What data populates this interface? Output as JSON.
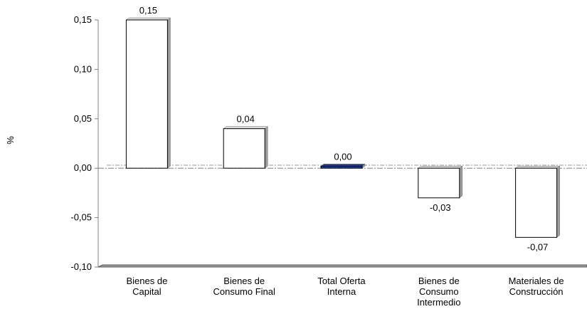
{
  "chart_data": {
    "type": "bar",
    "title": "",
    "xlabel": "",
    "ylabel": "%",
    "categories": [
      [
        "Bienes de",
        "Capital"
      ],
      [
        "Bienes de",
        "Consumo Final"
      ],
      [
        "Total Oferta",
        "Interna"
      ],
      [
        "Bienes de",
        "Consumo",
        "Intermedio"
      ],
      [
        "Materiales de",
        "Construcción"
      ]
    ],
    "values": [
      0.15,
      0.04,
      0.002,
      -0.03,
      -0.07
    ],
    "data_labels": [
      "0,15",
      "0,04",
      "0,00",
      "-0,03",
      "-0,07"
    ],
    "ylim": [
      -0.1,
      0.15
    ],
    "yticks": [
      0.15,
      0.1,
      0.05,
      0.0,
      -0.05,
      -0.1
    ],
    "ytick_labels": [
      "0,15",
      "0,10",
      "0,05",
      "0,00",
      "-0,05",
      "-0,10"
    ],
    "reference_line": 0.003,
    "grid": false,
    "legend": "none",
    "colors": {
      "bar_fill": "#ffffff",
      "bar_stroke": "#000000",
      "bar_side": "#9e9e9e",
      "highlight_bar_fill": "#1f3f8f",
      "axis": "#808080",
      "reference": "#999999",
      "floor": "#a0a0a0"
    }
  }
}
